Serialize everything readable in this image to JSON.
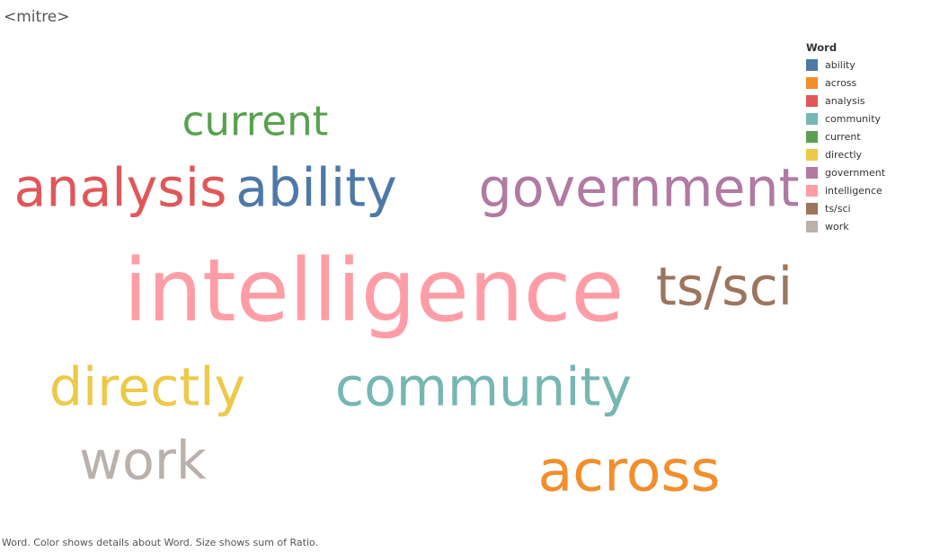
{
  "title": "<mitre>",
  "footer": "Word.  Color shows details about Word.  Size shows sum of Ratio.",
  "chart_data": {
    "type": "wordcloud",
    "color_field": "Word",
    "size_field": "Ratio",
    "words": [
      {
        "text": "ability",
        "color": "#4e79a7",
        "relative_size": 0.61
      },
      {
        "text": "across",
        "color": "#f28e2b",
        "relative_size": 0.66
      },
      {
        "text": "analysis",
        "color": "#e15759",
        "relative_size": 0.61
      },
      {
        "text": "community",
        "color": "#76b7b2",
        "relative_size": 0.61
      },
      {
        "text": "current",
        "color": "#59a14f",
        "relative_size": 0.47
      },
      {
        "text": "directly",
        "color": "#edc948",
        "relative_size": 0.61
      },
      {
        "text": "government",
        "color": "#b07aa1",
        "relative_size": 0.61
      },
      {
        "text": "intelligence",
        "color": "#ff9da7",
        "relative_size": 1.0
      },
      {
        "text": "ts/sci",
        "color": "#9c755f",
        "relative_size": 0.61
      },
      {
        "text": "work",
        "color": "#bab0ac",
        "relative_size": 0.61
      }
    ]
  },
  "legend": {
    "title": "Word",
    "items": [
      {
        "label": "ability",
        "color": "#4e79a7"
      },
      {
        "label": "across",
        "color": "#f28e2b"
      },
      {
        "label": "analysis",
        "color": "#e15759"
      },
      {
        "label": "community",
        "color": "#76b7b2"
      },
      {
        "label": "current",
        "color": "#59a14f"
      },
      {
        "label": "directly",
        "color": "#edc948"
      },
      {
        "label": "government",
        "color": "#b07aa1"
      },
      {
        "label": "intelligence",
        "color": "#ff9da7"
      },
      {
        "label": "ts/sci",
        "color": "#9c755f"
      },
      {
        "label": "work",
        "color": "#bab0ac"
      }
    ]
  }
}
